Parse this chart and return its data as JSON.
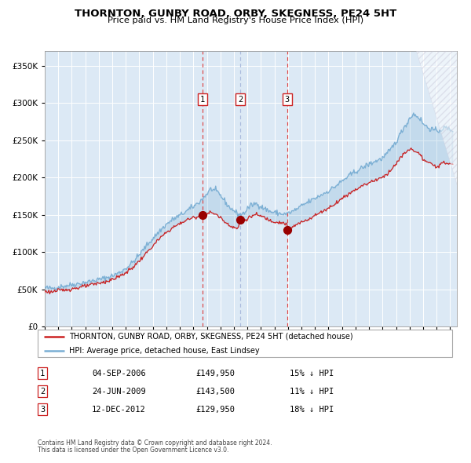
{
  "title": "THORNTON, GUNBY ROAD, ORBY, SKEGNESS, PE24 5HT",
  "subtitle": "Price paid vs. HM Land Registry's House Price Index (HPI)",
  "legend_line1": "THORNTON, GUNBY ROAD, ORBY, SKEGNESS, PE24 5HT (detached house)",
  "legend_line2": "HPI: Average price, detached house, East Lindsey",
  "footer1": "Contains HM Land Registry data © Crown copyright and database right 2024.",
  "footer2": "This data is licensed under the Open Government Licence v3.0.",
  "transactions": [
    {
      "num": 1,
      "date": "04-SEP-2006",
      "price": 149950,
      "pct": "15% ↓ HPI",
      "vline_color": "#dd4444",
      "vline_style": "--"
    },
    {
      "num": 2,
      "date": "24-JUN-2009",
      "price": 143500,
      "pct": "11% ↓ HPI",
      "vline_color": "#aabbdd",
      "vline_style": "--"
    },
    {
      "num": 3,
      "date": "12-DEC-2012",
      "price": 129950,
      "pct": "18% ↓ HPI",
      "vline_color": "#dd4444",
      "vline_style": "--"
    }
  ],
  "transaction_dates_decimal": [
    2006.674,
    2009.479,
    2012.945
  ],
  "transaction_prices": [
    149950,
    143500,
    129950
  ],
  "hpi_color": "#7bafd4",
  "price_color": "#cc2222",
  "plot_bg": "#dce9f5",
  "grid_color": "#ffffff",
  "ylim": [
    0,
    370000
  ],
  "xlim_start": 1995.0,
  "xlim_end": 2025.5,
  "table_rows": [
    [
      "1",
      "04-SEP-2006",
      "£149,950",
      "15% ↓ HPI"
    ],
    [
      "2",
      "24-JUN-2009",
      "£143,500",
      "11% ↓ HPI"
    ],
    [
      "3",
      "12-DEC-2012",
      "£129,950",
      "18% ↓ HPI"
    ]
  ]
}
